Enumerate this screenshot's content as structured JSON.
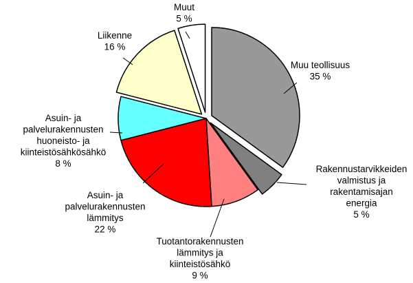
{
  "chart_data": {
    "type": "pie",
    "title": "",
    "unit": "%",
    "start_angle_deg": 0,
    "direction": "clockwise",
    "stroke_color": "#000000",
    "slices": [
      {
        "label": [
          "Muu teollisuus",
          "35 %"
        ],
        "value": 35,
        "color": "#999999",
        "exploded": true
      },
      {
        "label": [
          "Rakennustarvikkeiden",
          "valmistus ja",
          "rakentamisajan",
          "energia",
          "5 %"
        ],
        "value": 5,
        "color": "#808080",
        "exploded": true
      },
      {
        "label": [
          "Tuotantorakennusten",
          "lämmitys ja",
          "kiinteistösähkö",
          "9 %"
        ],
        "value": 9,
        "color": "#ff8080",
        "exploded": false
      },
      {
        "label": [
          "Asuin- ja",
          "palvelurakennusten",
          "lämmitys",
          "22 %"
        ],
        "value": 22,
        "color": "#ff0000",
        "exploded": false
      },
      {
        "label": [
          "Asuin- ja",
          "palvelurakennusten",
          "huoneisto- ja",
          "kiinteistösähkösähkö",
          "8 %"
        ],
        "value": 8,
        "color": "#66ffff",
        "exploded": false
      },
      {
        "label": [
          "Liikenne",
          "16 %"
        ],
        "value": 16,
        "color": "#ffffcc",
        "exploded": true
      },
      {
        "label": [
          "Muut",
          "5 %"
        ],
        "value": 5,
        "color": "#ffffff",
        "exploded": true
      }
    ]
  }
}
